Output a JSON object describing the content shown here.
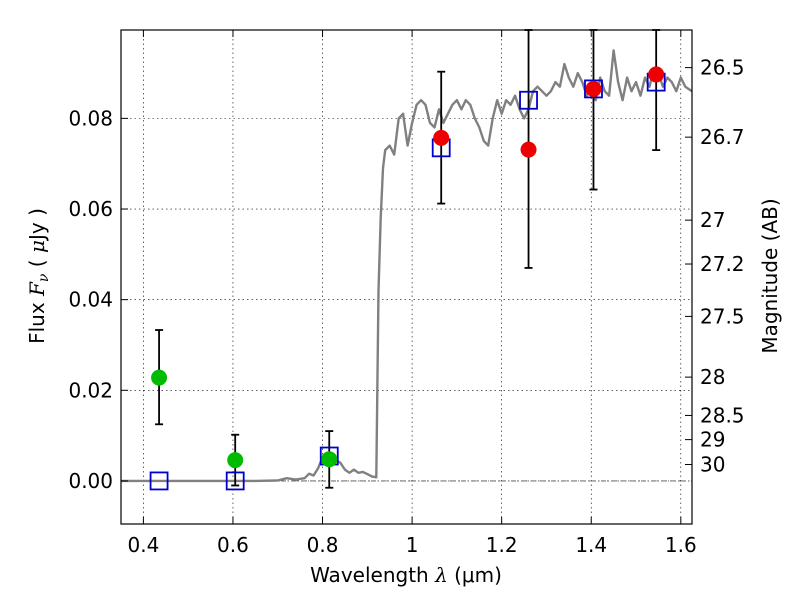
{
  "chart_data": {
    "type": "scatter",
    "xlabel": "Wavelength  λ (μm)",
    "ylabel": "Flux  Fν  ( μJy )",
    "ylabel_right": "Magnitude (AB)",
    "xlim": [
      0.35,
      1.625
    ],
    "ylim": [
      -0.0095,
      0.0995
    ],
    "grid": true,
    "x_ticks": [
      {
        "value": 0.4,
        "label": "0.4"
      },
      {
        "value": 0.6,
        "label": "0.6"
      },
      {
        "value": 0.8,
        "label": "0.8"
      },
      {
        "value": 1.0,
        "label": "1"
      },
      {
        "value": 1.2,
        "label": "1.2"
      },
      {
        "value": 1.4,
        "label": "1.4"
      },
      {
        "value": 1.6,
        "label": "1.6"
      }
    ],
    "y_ticks": [
      {
        "value": 0.0,
        "label": "0.00"
      },
      {
        "value": 0.02,
        "label": "0.02"
      },
      {
        "value": 0.04,
        "label": "0.04"
      },
      {
        "value": 0.06,
        "label": "0.06"
      },
      {
        "value": 0.08,
        "label": "0.08"
      }
    ],
    "right_ticks": [
      {
        "value": 26.5,
        "label": "26.5"
      },
      {
        "value": 26.7,
        "label": "26.7"
      },
      {
        "value": 27,
        "label": "27"
      },
      {
        "value": 27.2,
        "label": "27.2"
      },
      {
        "value": 27.5,
        "label": "27.5"
      },
      {
        "value": 28,
        "label": "28"
      },
      {
        "value": 28.5,
        "label": "28.5"
      },
      {
        "value": 29,
        "label": "29"
      },
      {
        "value": 30,
        "label": "30"
      }
    ],
    "colors": {
      "model": "#808080",
      "model_photometry": "#0000cc",
      "detections": "#ee0000",
      "upper_limits": "#00bb00",
      "error_bars": "#000000",
      "zero_line": "#555555"
    },
    "series": [
      {
        "kind": "line",
        "x": [
          0.35,
          0.4,
          0.45,
          0.5,
          0.55,
          0.6,
          0.65,
          0.7,
          0.72,
          0.74,
          0.76,
          0.77,
          0.78,
          0.79,
          0.8,
          0.81,
          0.82,
          0.83,
          0.84,
          0.85,
          0.86,
          0.87,
          0.88,
          0.89,
          0.9,
          0.91,
          0.92,
          0.925,
          0.93,
          0.935,
          0.94,
          0.95,
          0.96,
          0.97,
          0.98,
          0.99,
          1.0,
          1.01,
          1.02,
          1.03,
          1.04,
          1.05,
          1.06,
          1.07,
          1.08,
          1.09,
          1.1,
          1.11,
          1.12,
          1.13,
          1.14,
          1.15,
          1.16,
          1.17,
          1.18,
          1.19,
          1.2,
          1.21,
          1.22,
          1.23,
          1.24,
          1.25,
          1.26,
          1.27,
          1.28,
          1.29,
          1.3,
          1.31,
          1.32,
          1.33,
          1.34,
          1.35,
          1.36,
          1.37,
          1.38,
          1.39,
          1.4,
          1.41,
          1.42,
          1.43,
          1.44,
          1.45,
          1.46,
          1.47,
          1.48,
          1.49,
          1.5,
          1.51,
          1.52,
          1.53,
          1.54,
          1.55,
          1.56,
          1.57,
          1.58,
          1.59,
          1.6,
          1.61,
          1.625
        ],
        "y": [
          0.0,
          0.0,
          0.0,
          0.0,
          0.0,
          0.0,
          0.0,
          0.0001,
          0.0006,
          0.0003,
          0.0006,
          0.0016,
          0.0012,
          0.0028,
          0.0052,
          0.0058,
          0.0048,
          0.0046,
          0.004,
          0.0025,
          0.0018,
          0.0025,
          0.0018,
          0.002,
          0.0015,
          0.001,
          0.0008,
          0.042,
          0.058,
          0.069,
          0.073,
          0.074,
          0.072,
          0.08,
          0.081,
          0.074,
          0.079,
          0.083,
          0.084,
          0.083,
          0.079,
          0.078,
          0.082,
          0.079,
          0.081,
          0.083,
          0.084,
          0.082,
          0.084,
          0.083,
          0.08,
          0.078,
          0.075,
          0.074,
          0.08,
          0.084,
          0.081,
          0.084,
          0.083,
          0.085,
          0.082,
          0.08,
          0.082,
          0.086,
          0.087,
          0.086,
          0.085,
          0.086,
          0.088,
          0.087,
          0.092,
          0.089,
          0.087,
          0.09,
          0.088,
          0.085,
          0.087,
          0.084,
          0.089,
          0.086,
          0.085,
          0.095,
          0.088,
          0.084,
          0.089,
          0.086,
          0.088,
          0.085,
          0.089,
          0.087,
          0.091,
          0.09,
          0.087,
          0.089,
          0.088,
          0.086,
          0.089,
          0.087,
          0.086
        ]
      },
      {
        "kind": "squares",
        "x": [
          0.435,
          0.605,
          0.815,
          1.065,
          1.26,
          1.405,
          1.545
        ],
        "y": [
          0.0,
          0.0,
          0.0055,
          0.0735,
          0.084,
          0.0865,
          0.088
        ]
      },
      {
        "kind": "points",
        "x": [
          1.065,
          1.26,
          1.405,
          1.545
        ],
        "y": [
          0.0757,
          0.0731,
          0.0865,
          0.0897
        ],
        "yerr_low": [
          0.0612,
          0.047,
          0.0643,
          0.073
        ],
        "yerr_high": [
          0.0903,
          0.0995,
          0.0995,
          0.0995
        ]
      },
      {
        "kind": "points",
        "x": [
          0.435,
          0.605,
          0.815
        ],
        "y": [
          0.0228,
          0.0046,
          0.0048
        ],
        "yerr_low": [
          0.0125,
          -0.001,
          -0.0015
        ],
        "yerr_high": [
          0.0333,
          0.0102,
          0.011
        ]
      }
    ]
  }
}
